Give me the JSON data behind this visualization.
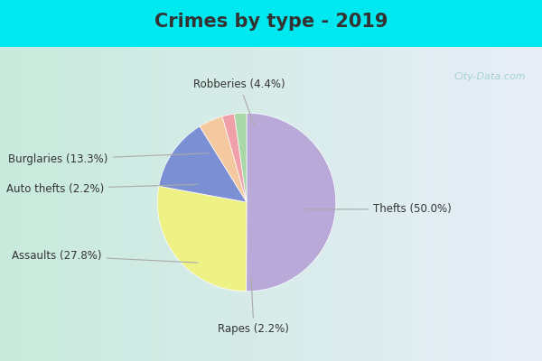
{
  "title": "Crimes by type - 2019",
  "labels": [
    "Thefts",
    "Assaults",
    "Burglaries",
    "Robberies",
    "Auto thefts",
    "Rapes"
  ],
  "percentages": [
    50.0,
    27.8,
    13.3,
    4.4,
    2.2,
    2.2
  ],
  "colors": [
    "#b8a9d9",
    "#eef285",
    "#7b8fd4",
    "#f5c9a0",
    "#f0a0a8",
    "#a8d8a8"
  ],
  "label_texts": [
    "Thefts (50.0%)",
    "Assaults (27.8%)",
    "Burglaries (13.3%)",
    "Robberies (4.4%)",
    "Auto thefts (2.2%)",
    "Rapes (2.2%)"
  ],
  "cyan_bar_color": "#00e8f0",
  "panel_bg_left": "#c8eadc",
  "panel_bg_right": "#e8eef8",
  "title_fontsize": 15,
  "label_fontsize": 8.5,
  "title_color": "#333333",
  "watermark_color": "#99cccc",
  "label_color": "#333333",
  "line_color": "#aaaaaa"
}
